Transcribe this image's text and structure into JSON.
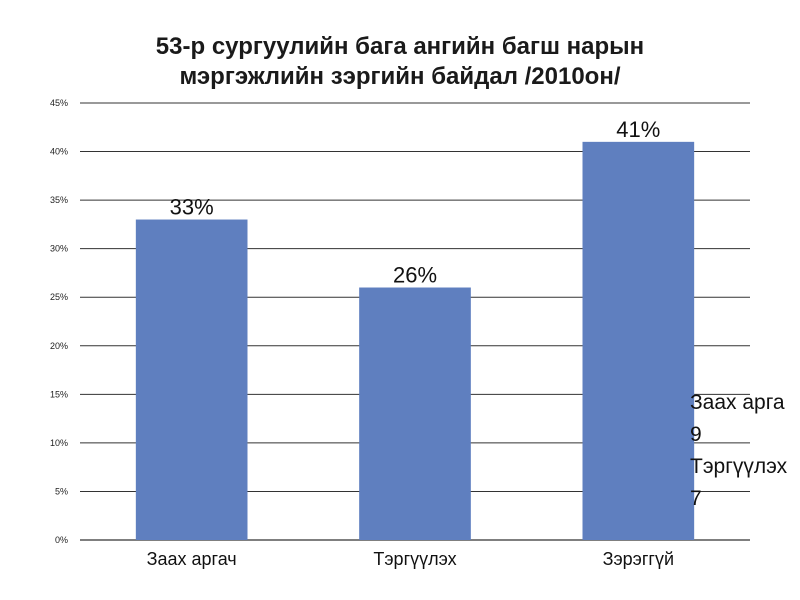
{
  "colors": {
    "bar": "#5f7fbf",
    "grid": "#333333",
    "background": "#ffffff"
  },
  "chart_data": {
    "type": "bar",
    "title_lines": [
      "53-р сургуулийн бага ангийн багш нарын",
      "мэргэжлийн зэргийн байдал /2010он/"
    ],
    "categories": [
      "Заах аргач",
      "Тэргүүлэх",
      "Зэрэггүй"
    ],
    "values": [
      33,
      26,
      41
    ],
    "data_labels": [
      "33%",
      "26%",
      "41%"
    ],
    "ylim": [
      0,
      45
    ],
    "y_ticks": [
      "0%",
      "5%",
      "10%",
      "15%",
      "20%",
      "25%",
      "30%",
      "35%",
      "40%",
      "45%"
    ],
    "grid": true,
    "xlabel": "",
    "ylabel": ""
  },
  "overflow_text": [
    "Заах арга",
    "9",
    "Тэргүүлэх",
    "7"
  ]
}
